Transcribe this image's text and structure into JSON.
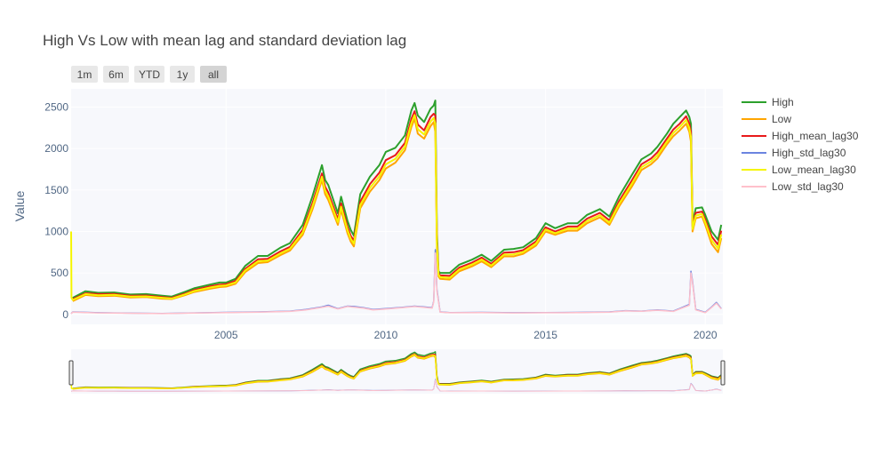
{
  "chart_data": {
    "type": "line",
    "title": "High Vs Low with mean lag and standard deviation lag",
    "ylabel": "Value",
    "xlabel": "",
    "xlim": [
      2000.15,
      2020.55
    ],
    "ylim": [
      -120,
      2720
    ],
    "x_ticks": [
      2005,
      2010,
      2015,
      2020
    ],
    "x_tick_labels": [
      "2005",
      "2010",
      "2015",
      "2020"
    ],
    "y_ticks": [
      0,
      500,
      1000,
      1500,
      2000,
      2500
    ],
    "y_tick_labels": [
      "0",
      "500",
      "1000",
      "1500",
      "2000",
      "2500"
    ],
    "grid": true,
    "legend_position": "right",
    "range_selector": {
      "buttons": [
        "1m",
        "6m",
        "YTD",
        "1y",
        "all"
      ],
      "active": "all"
    },
    "range_slider": true,
    "series": [
      {
        "name": "High",
        "color": "#2ca02c",
        "width": 2,
        "x": [
          2000.2,
          2000.6,
          2001.0,
          2001.5,
          2002.0,
          2002.5,
          2003.0,
          2003.3,
          2003.7,
          2004.0,
          2004.5,
          2004.8,
          2005.0,
          2005.3,
          2005.6,
          2006.0,
          2006.3,
          2006.7,
          2007.0,
          2007.4,
          2007.7,
          2008.0,
          2008.1,
          2008.2,
          2008.5,
          2008.6,
          2008.8,
          2008.9,
          2009.0,
          2009.2,
          2009.5,
          2009.8,
          2010.0,
          2010.3,
          2010.6,
          2010.8,
          2010.9,
          2011.0,
          2011.2,
          2011.4,
          2011.5,
          2011.55,
          2011.6,
          2011.65,
          2011.7,
          2012.0,
          2012.3,
          2012.7,
          2013.0,
          2013.3,
          2013.7,
          2014.0,
          2014.3,
          2014.7,
          2015.0,
          2015.3,
          2015.7,
          2016.0,
          2016.3,
          2016.7,
          2017.0,
          2017.3,
          2017.7,
          2018.0,
          2018.3,
          2018.5,
          2018.8,
          2019.0,
          2019.2,
          2019.4,
          2019.5,
          2019.55,
          2019.6,
          2019.7,
          2019.9,
          2020.0,
          2020.2,
          2020.4,
          2020.5
        ],
        "y": [
          200,
          280,
          260,
          265,
          240,
          245,
          225,
          215,
          270,
          315,
          360,
          385,
          385,
          430,
          585,
          705,
          705,
          805,
          860,
          1080,
          1420,
          1800,
          1620,
          1560,
          1220,
          1420,
          1130,
          1020,
          950,
          1450,
          1660,
          1800,
          1960,
          2010,
          2160,
          2460,
          2550,
          2400,
          2320,
          2480,
          2520,
          2580,
          1000,
          520,
          500,
          500,
          600,
          660,
          720,
          645,
          780,
          790,
          810,
          920,
          1100,
          1040,
          1100,
          1100,
          1200,
          1270,
          1180,
          1420,
          1680,
          1870,
          1940,
          2020,
          2180,
          2300,
          2380,
          2460,
          2380,
          2300,
          1100,
          1280,
          1290,
          1200,
          1000,
          900,
          1080
        ]
      },
      {
        "name": "Low",
        "color": "#ffa500",
        "width": 2,
        "x": [
          2000.2,
          2000.6,
          2001.0,
          2001.5,
          2002.0,
          2002.5,
          2003.0,
          2003.3,
          2003.7,
          2004.0,
          2004.5,
          2004.8,
          2005.0,
          2005.3,
          2005.6,
          2006.0,
          2006.3,
          2006.7,
          2007.0,
          2007.4,
          2007.7,
          2008.0,
          2008.1,
          2008.2,
          2008.5,
          2008.6,
          2008.8,
          2008.9,
          2009.0,
          2009.2,
          2009.5,
          2009.8,
          2010.0,
          2010.3,
          2010.6,
          2010.8,
          2010.9,
          2011.0,
          2011.2,
          2011.4,
          2011.5,
          2011.55,
          2011.6,
          2011.65,
          2011.7,
          2012.0,
          2012.3,
          2012.7,
          2013.0,
          2013.3,
          2013.7,
          2014.0,
          2014.3,
          2014.7,
          2015.0,
          2015.3,
          2015.7,
          2016.0,
          2016.3,
          2016.7,
          2017.0,
          2017.3,
          2017.7,
          2018.0,
          2018.3,
          2018.5,
          2018.8,
          2019.0,
          2019.2,
          2019.4,
          2019.5,
          2019.55,
          2019.6,
          2019.7,
          2019.9,
          2020.0,
          2020.2,
          2020.4,
          2020.5
        ],
        "y": [
          160,
          235,
          220,
          225,
          205,
          210,
          190,
          185,
          230,
          270,
          310,
          330,
          335,
          370,
          510,
          620,
          630,
          715,
          770,
          960,
          1260,
          1620,
          1450,
          1380,
          1080,
          1260,
          980,
          880,
          820,
          1280,
          1480,
          1620,
          1760,
          1830,
          1980,
          2260,
          2360,
          2180,
          2120,
          2270,
          2320,
          2200,
          800,
          460,
          430,
          420,
          520,
          580,
          640,
          570,
          700,
          700,
          730,
          830,
          1000,
          960,
          1010,
          1010,
          1100,
          1170,
          1080,
          1300,
          1540,
          1740,
          1810,
          1880,
          2050,
          2150,
          2220,
          2300,
          2200,
          2080,
          1000,
          1160,
          1180,
          1080,
          850,
          750,
          920
        ]
      },
      {
        "name": "High_mean_lag30",
        "color": "#e8191a",
        "width": 2,
        "x": [
          2000.2,
          2000.6,
          2001.0,
          2001.5,
          2002.0,
          2002.5,
          2003.0,
          2003.3,
          2003.7,
          2004.0,
          2004.5,
          2004.8,
          2005.0,
          2005.3,
          2005.6,
          2006.0,
          2006.3,
          2006.7,
          2007.0,
          2007.4,
          2007.7,
          2008.0,
          2008.1,
          2008.2,
          2008.5,
          2008.6,
          2008.8,
          2008.9,
          2009.0,
          2009.2,
          2009.5,
          2009.8,
          2010.0,
          2010.3,
          2010.6,
          2010.8,
          2010.9,
          2011.0,
          2011.2,
          2011.4,
          2011.5,
          2011.55,
          2011.6,
          2011.65,
          2011.7,
          2012.0,
          2012.3,
          2012.7,
          2013.0,
          2013.3,
          2013.7,
          2014.0,
          2014.3,
          2014.7,
          2015.0,
          2015.3,
          2015.7,
          2016.0,
          2016.3,
          2016.7,
          2017.0,
          2017.3,
          2017.7,
          2018.0,
          2018.3,
          2018.5,
          2018.8,
          2019.0,
          2019.2,
          2019.4,
          2019.5,
          2019.55,
          2019.6,
          2019.7,
          2019.9,
          2020.0,
          2020.2,
          2020.4,
          2020.5
        ],
        "y": [
          185,
          255,
          245,
          248,
          225,
          228,
          210,
          200,
          250,
          295,
          340,
          360,
          365,
          405,
          550,
          665,
          670,
          760,
          815,
          1020,
          1340,
          1700,
          1540,
          1470,
          1150,
          1340,
          1060,
          950,
          890,
          1360,
          1570,
          1710,
          1860,
          1920,
          2070,
          2360,
          2450,
          2290,
          2220,
          2380,
          2420,
          2400,
          900,
          500,
          470,
          465,
          565,
          625,
          685,
          610,
          745,
          750,
          775,
          880,
          1050,
          1000,
          1060,
          1060,
          1155,
          1225,
          1135,
          1365,
          1615,
          1810,
          1880,
          1955,
          2120,
          2230,
          2300,
          2390,
          2300,
          2200,
          1060,
          1225,
          1240,
          1145,
          940,
          840,
          1010
        ]
      },
      {
        "name": "High_std_lag30",
        "color": "#6b84e0",
        "width": 1.5,
        "x": [
          2000.15,
          2000.2,
          2001.0,
          2002.0,
          2003.0,
          2004.0,
          2005.0,
          2006.0,
          2007.0,
          2007.5,
          2008.0,
          2008.2,
          2008.5,
          2008.8,
          2009.0,
          2009.3,
          2009.6,
          2010.0,
          2010.5,
          2010.9,
          2011.2,
          2011.45,
          2011.5,
          2011.55,
          2011.6,
          2011.7,
          2012.0,
          2013.0,
          2014.0,
          2015.0,
          2016.0,
          2017.0,
          2017.5,
          2018.0,
          2018.5,
          2019.0,
          2019.5,
          2019.55,
          2019.6,
          2019.7,
          2020.0,
          2020.2,
          2020.35,
          2020.5
        ],
        "y": [
          10,
          30,
          20,
          15,
          12,
          18,
          25,
          30,
          40,
          60,
          90,
          110,
          70,
          100,
          95,
          80,
          60,
          70,
          85,
          100,
          90,
          80,
          160,
          780,
          300,
          30,
          22,
          25,
          20,
          22,
          25,
          30,
          45,
          40,
          55,
          40,
          120,
          520,
          400,
          60,
          25,
          90,
          145,
          70
        ]
      },
      {
        "name": "Low_mean_lag30",
        "color": "#f5f500",
        "width": 2,
        "x": [
          2000.15,
          2000.16,
          2000.2,
          2000.6,
          2001.0,
          2001.5,
          2002.0,
          2002.5,
          2003.0,
          2003.3,
          2003.7,
          2004.0,
          2004.5,
          2004.8,
          2005.0,
          2005.3,
          2005.6,
          2006.0,
          2006.3,
          2006.7,
          2007.0,
          2007.4,
          2007.7,
          2008.0,
          2008.1,
          2008.2,
          2008.5,
          2008.6,
          2008.8,
          2008.9,
          2009.0,
          2009.2,
          2009.5,
          2009.8,
          2010.0,
          2010.3,
          2010.6,
          2010.8,
          2010.9,
          2011.0,
          2011.2,
          2011.4,
          2011.5,
          2011.55,
          2011.6,
          2011.65,
          2011.7,
          2012.0,
          2012.3,
          2012.7,
          2013.0,
          2013.3,
          2013.7,
          2014.0,
          2014.3,
          2014.7,
          2015.0,
          2015.3,
          2015.7,
          2016.0,
          2016.3,
          2016.7,
          2017.0,
          2017.3,
          2017.7,
          2018.0,
          2018.3,
          2018.5,
          2018.8,
          2019.0,
          2019.2,
          2019.4,
          2019.5,
          2019.55,
          2019.6,
          2019.7,
          2019.9,
          2020.0,
          2020.2,
          2020.4,
          2020.5
        ],
        "y": [
          1000,
          200,
          175,
          245,
          232,
          236,
          215,
          218,
          200,
          192,
          240,
          282,
          325,
          345,
          350,
          387,
          530,
          642,
          650,
          737,
          792,
          990,
          1300,
          1660,
          1495,
          1425,
          1115,
          1300,
          1020,
          915,
          855,
          1320,
          1525,
          1665,
          1810,
          1875,
          2025,
          2310,
          2405,
          2235,
          2170,
          2325,
          2370,
          2300,
          850,
          480,
          450,
          442,
          542,
          602,
          662,
          590,
          722,
          725,
          752,
          855,
          1025,
          980,
          1035,
          1035,
          1127,
          1197,
          1107,
          1332,
          1577,
          1775,
          1845,
          1917,
          2085,
          2190,
          2260,
          2345,
          2250,
          2140,
          1030,
          1192,
          1210,
          1112,
          895,
          795,
          965
        ]
      },
      {
        "name": "Low_std_lag30",
        "color": "#ffc0cb",
        "width": 1.5,
        "x": [
          2000.15,
          2000.2,
          2001.0,
          2002.0,
          2003.0,
          2004.0,
          2005.0,
          2006.0,
          2007.0,
          2007.5,
          2008.0,
          2008.2,
          2008.5,
          2008.8,
          2009.0,
          2009.3,
          2009.6,
          2010.0,
          2010.5,
          2010.9,
          2011.2,
          2011.45,
          2011.5,
          2011.55,
          2011.6,
          2011.7,
          2012.0,
          2013.0,
          2014.0,
          2015.0,
          2016.0,
          2017.0,
          2017.5,
          2018.0,
          2018.5,
          2019.0,
          2019.5,
          2019.55,
          2019.6,
          2019.7,
          2020.0,
          2020.2,
          2020.35,
          2020.5
        ],
        "y": [
          8,
          28,
          18,
          14,
          10,
          16,
          22,
          28,
          36,
          55,
          85,
          100,
          65,
          95,
          88,
          75,
          55,
          65,
          80,
          95,
          85,
          75,
          150,
          740,
          280,
          28,
          20,
          22,
          18,
          20,
          22,
          28,
          42,
          38,
          50,
          36,
          110,
          500,
          380,
          55,
          22,
          85,
          135,
          65
        ]
      }
    ]
  }
}
